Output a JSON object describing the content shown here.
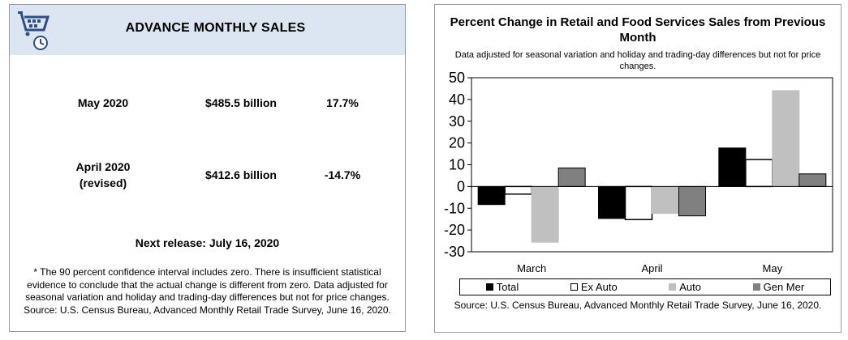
{
  "left": {
    "title": "ADVANCE MONTHLY SALES",
    "rows": [
      {
        "period": "May 2020",
        "sales": "$485.5 billion",
        "change": "17.7%"
      },
      {
        "period_line1": "April 2020",
        "period_line2": "(revised)",
        "sales": "$412.6 billion",
        "change": "-14.7%"
      }
    ],
    "next_release": "Next release: July 16, 2020",
    "note": "* The 90 percent confidence interval includes zero. There is insufficient statistical evidence to conclude that the actual change is different from zero. Data adjusted for seasonal variation and holiday and trading-day differences but not for price changes. Source: U.S. Census Bureau, Advanced Monthly Retail Trade Survey, June 16, 2020."
  },
  "chart_data": {
    "type": "bar",
    "title": "Percent Change in Retail and Food Services Sales from Previous Month",
    "subtitle": "Data adjusted for seasonal variation and holiday and trading-day differences but not for price changes.",
    "categories": [
      "March",
      "April",
      "May"
    ],
    "series": [
      {
        "name": "Total",
        "values": [
          -8.3,
          -14.7,
          17.7
        ],
        "color": "#000000"
      },
      {
        "name": "Ex Auto",
        "values": [
          -3.5,
          -15.2,
          12.4
        ],
        "color": "#ffffff"
      },
      {
        "name": "Auto",
        "values": [
          -25.6,
          -12.4,
          44.1
        ],
        "color": "#c0c0c0"
      },
      {
        "name": "Gen Mer",
        "values": [
          8.5,
          -13.5,
          5.8
        ],
        "color": "#808080"
      }
    ],
    "ylim": [
      -30,
      50
    ],
    "yticks": [
      -30,
      -20,
      -10,
      0,
      10,
      20,
      30,
      40,
      50
    ],
    "legend_position": "bottom",
    "source": "Source: U.S. Census Bureau, Advanced Monthly Retail Trade Survey, June 16, 2020."
  }
}
